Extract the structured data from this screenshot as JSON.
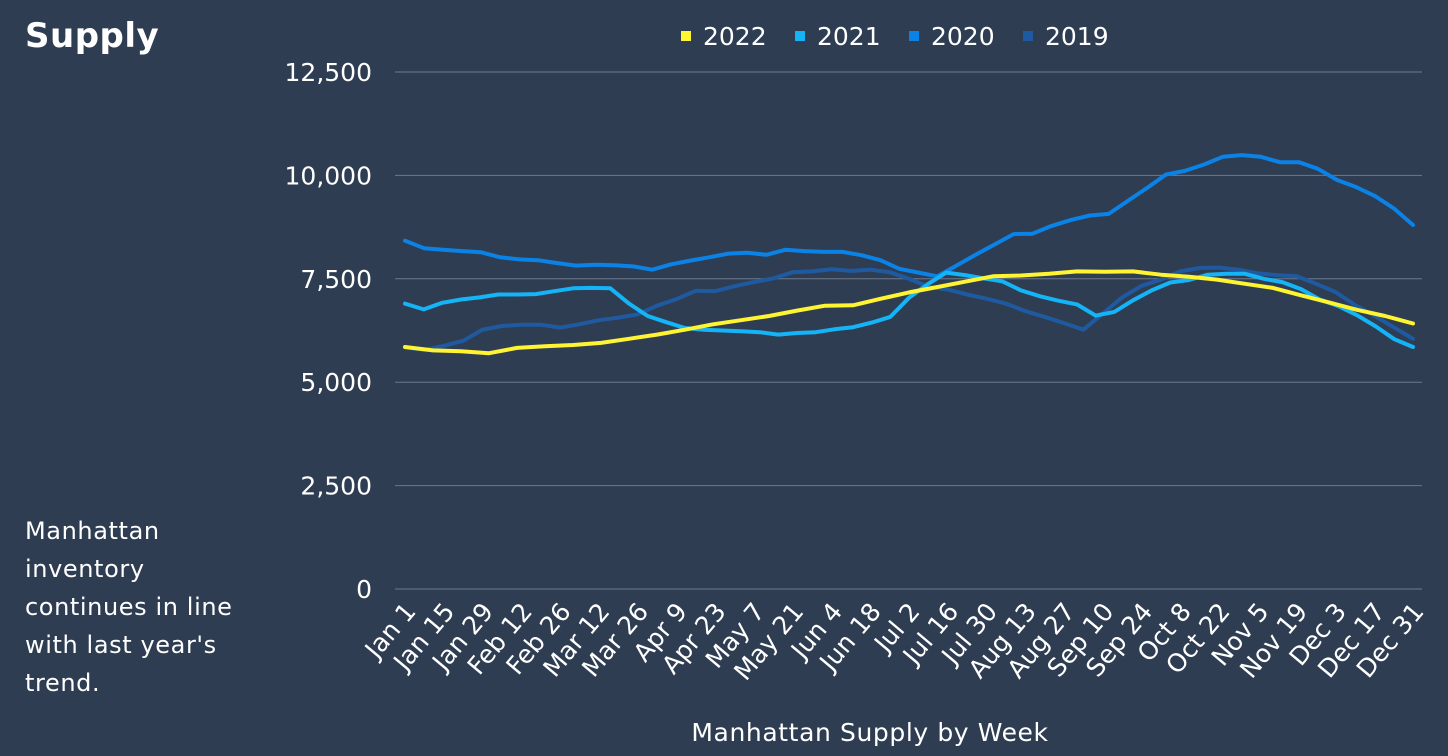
{
  "title": "Supply",
  "note": "Manhattan inventory continues in line with last year's trend.",
  "colors": {
    "background": "#2e3d52",
    "grid": "#6d7a8b",
    "text": "#ffffff",
    "series_2022": "#fff432",
    "series_2021": "#14b4f7",
    "series_2020": "#0a82e6",
    "series_2019": "#1f5aa0"
  },
  "chart_data": {
    "type": "line",
    "xlabel": "Manhattan Supply by Week",
    "ylabel": "",
    "ylim": [
      0,
      12500
    ],
    "yticks": [
      0,
      2500,
      5000,
      7500,
      10000,
      12500
    ],
    "ytick_labels": [
      "0",
      "2,500",
      "5,000",
      "7,500",
      "10,000",
      "12,500"
    ],
    "grid": true,
    "legend_position": "top",
    "x_tick_labels": [
      "Jan 1",
      "Jan 15",
      "Jan 29",
      "Feb 12",
      "Feb 26",
      "Mar 12",
      "Mar 26",
      "Apr 9",
      "Apr 23",
      "May 7",
      "May 21",
      "Jun 4",
      "Jun 18",
      "Jul 2",
      "Jul 16",
      "Jul 30",
      "Aug 13",
      "Aug 27",
      "Sep 10",
      "Sep 24",
      "Oct 8",
      "Oct 22",
      "Nov 5",
      "Nov 19",
      "Dec 3",
      "Dec 17",
      "Dec 31"
    ],
    "series": [
      {
        "name": "2022",
        "color": "#fff432",
        "values": [
          5850,
          5770,
          5750,
          5700,
          5830,
          5870,
          5900,
          5950,
          6050,
          6150,
          6270,
          6400,
          6500,
          6600,
          6730,
          6850,
          6860,
          7020,
          7170,
          7300,
          7430,
          7560,
          7580,
          7620,
          7680,
          7670,
          7680,
          7600,
          7550,
          7480,
          7380,
          7280,
          7100,
          6930,
          6750,
          6600,
          6420
        ]
      },
      {
        "name": "2021",
        "color": "#14b4f7",
        "values": [
          6900,
          6760,
          6920,
          7000,
          7050,
          7120,
          7120,
          7130,
          7200,
          7270,
          7280,
          7270,
          6900,
          6600,
          6450,
          6310,
          6270,
          6250,
          6230,
          6210,
          6150,
          6190,
          6210,
          6280,
          6330,
          6440,
          6580,
          7040,
          7370,
          7650,
          7590,
          7510,
          7440,
          7220,
          7080,
          6970,
          6880,
          6610,
          6700,
          6980,
          7220,
          7410,
          7470,
          7600,
          7620,
          7620,
          7500,
          7420,
          7250,
          7000,
          6840,
          6620,
          6350,
          6040,
          5850
        ]
      },
      {
        "name": "2020",
        "color": "#0a82e6",
        "values": [
          8420,
          8240,
          8200,
          8170,
          8140,
          8020,
          7970,
          7950,
          7880,
          7820,
          7840,
          7830,
          7800,
          7720,
          7850,
          7940,
          8020,
          8110,
          8130,
          8080,
          8200,
          8170,
          8150,
          8150,
          8070,
          7950,
          7740,
          7650,
          7560,
          7820,
          8080,
          8330,
          8580,
          8590,
          8780,
          8920,
          9030,
          9070,
          9380,
          9690,
          10020,
          10110,
          10260,
          10450,
          10490,
          10450,
          10320,
          10320,
          10160,
          9890,
          9720,
          9500,
          9200,
          8800
        ]
      },
      {
        "name": "2019",
        "color": "#1f5aa0",
        "values": [
          5840,
          5780,
          5880,
          6000,
          6270,
          6360,
          6390,
          6390,
          6320,
          6400,
          6500,
          6560,
          6640,
          6850,
          7010,
          7210,
          7200,
          7320,
          7420,
          7510,
          7660,
          7680,
          7730,
          7690,
          7720,
          7660,
          7500,
          7310,
          7240,
          7120,
          7020,
          6900,
          6720,
          6580,
          6430,
          6270,
          6660,
          7050,
          7330,
          7480,
          7680,
          7760,
          7770,
          7720,
          7630,
          7590,
          7560,
          7380,
          7180,
          6870,
          6610,
          6330,
          6050
        ]
      }
    ]
  }
}
